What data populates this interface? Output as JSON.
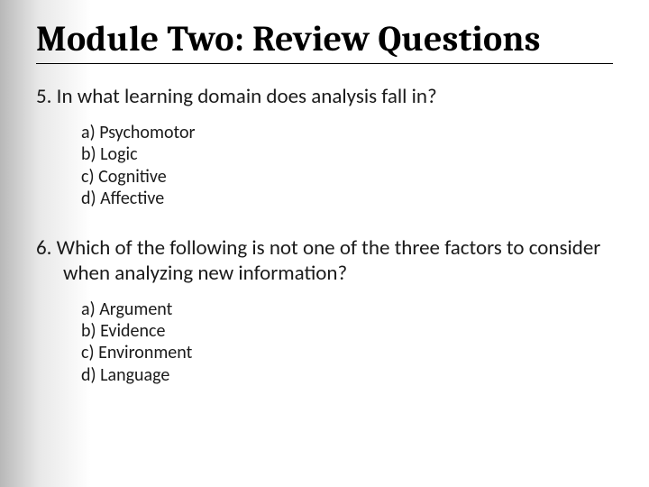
{
  "title": "Module Two: Review Questions",
  "title_fontsize": 40,
  "title_color": "#000000",
  "title_underline_color": "#000000",
  "background_gradient_from": "#b8b8b8",
  "background_gradient_to": "#ffffff",
  "body_fontsize_question": 23,
  "body_fontsize_option": 20,
  "text_color": "#1a1a1a",
  "questions": [
    {
      "number": "5.",
      "text": "In what learning domain does analysis fall in?",
      "options": [
        {
          "letter": "a)",
          "text": "Psychomotor"
        },
        {
          "letter": "b)",
          "text": "Logic"
        },
        {
          "letter": "c)",
          "text": "Cognitive"
        },
        {
          "letter": "d)",
          "text": "Affective"
        }
      ]
    },
    {
      "number": "6.",
      "text": "Which of the following is not one of the three factors to consider when analyzing new information?",
      "options": [
        {
          "letter": "a)",
          "text": "Argument"
        },
        {
          "letter": "b)",
          "text": "Evidence"
        },
        {
          "letter": "c)",
          "text": "Environment"
        },
        {
          "letter": "d)",
          "text": "Language"
        }
      ]
    }
  ]
}
